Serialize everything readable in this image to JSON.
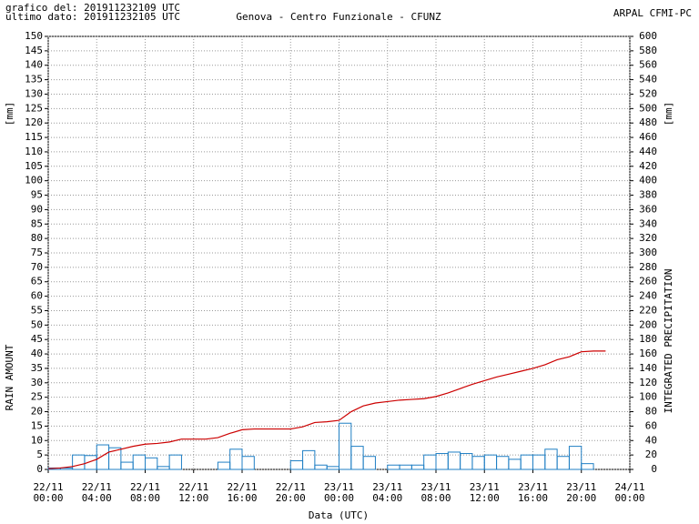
{
  "chart_data": {
    "type": "combo",
    "title": "Genova - Centro Funzionale - CFUNZ",
    "info_lines": [
      "grafico del: 201911232109 UTC",
      "ultimo dato: 201911232105 UTC"
    ],
    "source": "ARPAL CFMI-PC",
    "xlabel": "Data (UTC)",
    "ylabel": "RAIN AMOUNT",
    "yunit": "[mm]",
    "y2label": "INTEGRATED PRECIPITATION",
    "y2unit": "[mm]",
    "grid": true,
    "xlim": [
      0,
      48
    ],
    "xticks": [
      {
        "value": 0,
        "label": "22/11 00:00"
      },
      {
        "value": 4,
        "label": "22/11 04:00"
      },
      {
        "value": 8,
        "label": "22/11 08:00"
      },
      {
        "value": 12,
        "label": "22/11 12:00"
      },
      {
        "value": 16,
        "label": "22/11 16:00"
      },
      {
        "value": 20,
        "label": "22/11 20:00"
      },
      {
        "value": 24,
        "label": "23/11 00:00"
      },
      {
        "value": 28,
        "label": "23/11 04:00"
      },
      {
        "value": 32,
        "label": "23/11 08:00"
      },
      {
        "value": 36,
        "label": "23/11 12:00"
      },
      {
        "value": 40,
        "label": "23/11 16:00"
      },
      {
        "value": 44,
        "label": "23/11 20:00"
      },
      {
        "value": 48,
        "label": "24/11 00:00"
      }
    ],
    "ylim": [
      0,
      150
    ],
    "yticks": [
      0,
      5,
      10,
      15,
      20,
      25,
      30,
      35,
      40,
      45,
      50,
      55,
      60,
      65,
      70,
      75,
      80,
      85,
      90,
      95,
      100,
      105,
      110,
      115,
      120,
      125,
      130,
      135,
      140,
      145,
      150
    ],
    "y2lim": [
      0,
      600
    ],
    "y2ticks": [
      0,
      20,
      40,
      60,
      80,
      100,
      120,
      140,
      160,
      180,
      200,
      220,
      240,
      260,
      280,
      300,
      320,
      340,
      360,
      380,
      400,
      420,
      440,
      460,
      480,
      500,
      520,
      540,
      560,
      580,
      600
    ],
    "series": [
      {
        "type": "bar",
        "color": "#1f7fc4",
        "x": [
          0,
          1,
          2,
          3,
          4,
          5,
          6,
          7,
          8,
          9,
          10,
          11,
          12,
          13,
          14,
          15,
          16,
          17,
          18,
          19,
          20,
          21,
          22,
          23,
          24,
          25,
          26,
          27,
          28,
          29,
          30,
          31,
          32,
          33,
          34,
          35,
          36,
          37,
          38,
          39,
          40,
          41,
          42,
          43,
          44
        ],
        "values": [
          0.5,
          0.5,
          5,
          4.8,
          8.5,
          7.5,
          2.5,
          5,
          4,
          1,
          5,
          0,
          0,
          0,
          2.5,
          7,
          4.5,
          0,
          0,
          0,
          3,
          6.5,
          1.5,
          1,
          16,
          8,
          4.5,
          0,
          1.5,
          1.5,
          1.5,
          5,
          5.5,
          6,
          5.5,
          4.5,
          5,
          4.5,
          3.5,
          5,
          5,
          7,
          4.5,
          8,
          2
        ]
      },
      {
        "type": "line",
        "axis": "y2",
        "color": "#cc0000",
        "x": [
          0,
          1,
          2,
          3,
          4,
          5,
          6,
          7,
          8,
          9,
          10,
          11,
          12,
          13,
          14,
          15,
          16,
          17,
          18,
          19,
          20,
          21,
          22,
          23,
          24,
          25,
          26,
          27,
          28,
          29,
          30,
          31,
          32,
          33,
          34,
          35,
          36,
          37,
          38,
          39,
          40,
          41,
          42,
          43,
          44,
          45,
          46
        ],
        "values": [
          1,
          2,
          4,
          8,
          14,
          24,
          28,
          32,
          35,
          36,
          38,
          42,
          42,
          42,
          44,
          50,
          55,
          56,
          56,
          56,
          56,
          59,
          65,
          66,
          68,
          80,
          88,
          92,
          94,
          96,
          97,
          98,
          101,
          106,
          112,
          118,
          123,
          128,
          132,
          136,
          140,
          145,
          152,
          156,
          163,
          164,
          164
        ]
      }
    ]
  }
}
